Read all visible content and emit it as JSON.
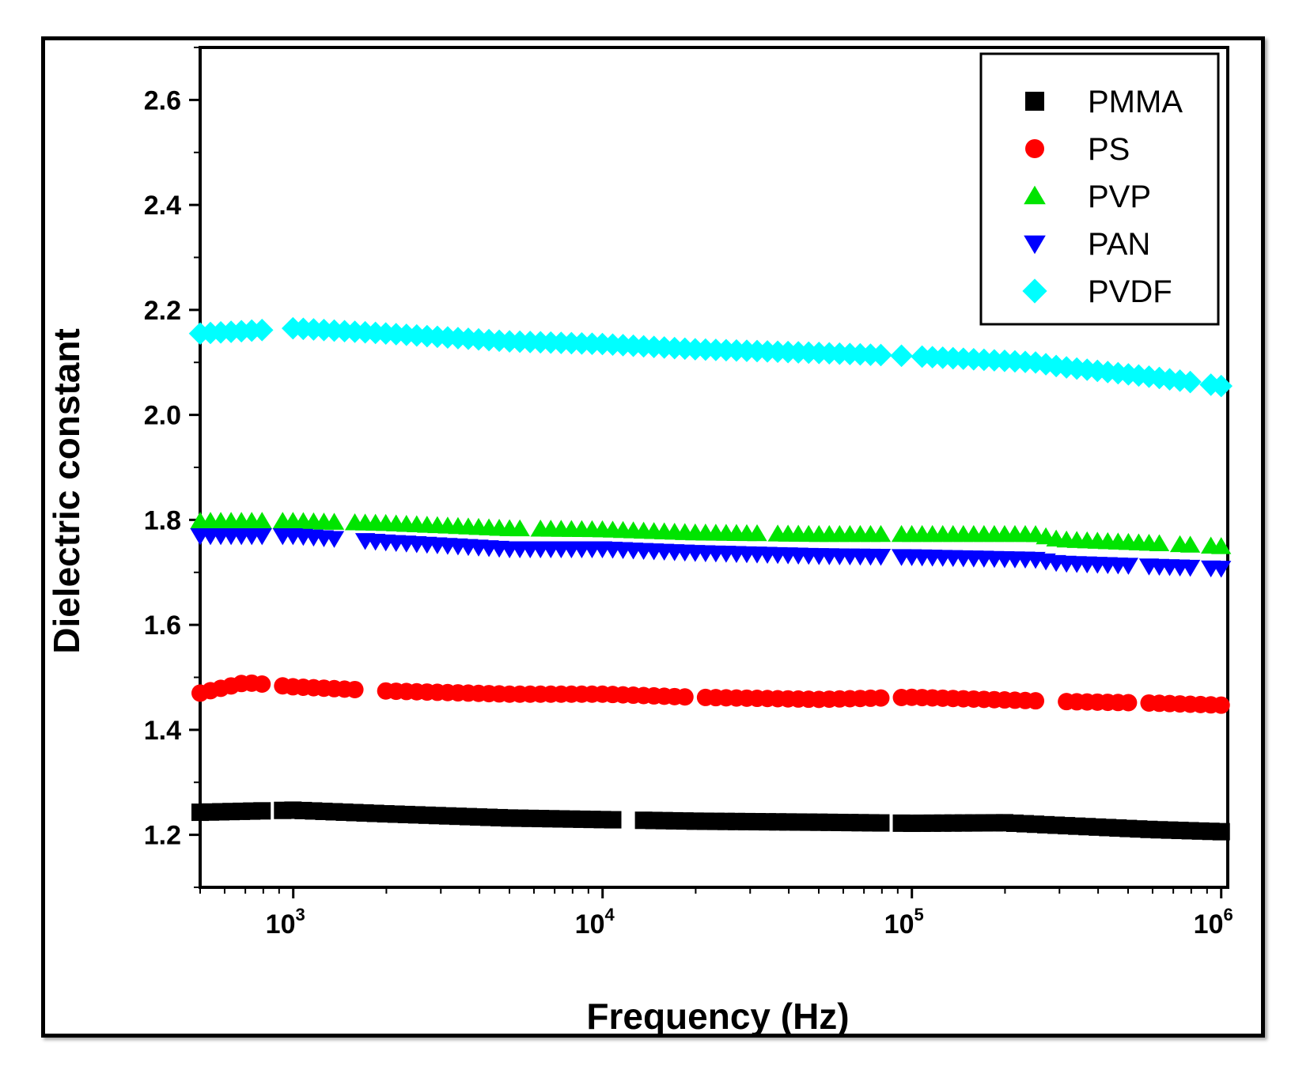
{
  "chart_data": {
    "type": "scatter",
    "xscale": "log",
    "xlabel": "Frequency (Hz)",
    "ylabel": "Dielectric constant",
    "xlim": [
      500,
      1050000
    ],
    "ylim": [
      1.1,
      2.7
    ],
    "yticks": [
      1.2,
      1.4,
      1.6,
      1.8,
      2.0,
      2.2,
      2.4,
      2.6
    ],
    "ytick_labels": [
      "1.2",
      "1.4",
      "1.6",
      "1.8",
      "2.0",
      "2.2",
      "2.4",
      "2.6"
    ],
    "xticks": [
      1000,
      10000,
      100000,
      1000000
    ],
    "xtick_labels": [
      {
        "base": "10",
        "exp": "3"
      },
      {
        "base": "10",
        "exp": "4"
      },
      {
        "base": "10",
        "exp": "5"
      },
      {
        "base": "10",
        "exp": "6"
      }
    ],
    "legend_position": "top-right",
    "series": [
      {
        "name": "PMMA",
        "marker": "square",
        "color": "#000000",
        "points": [
          [
            500,
            1.243
          ],
          [
            1000,
            1.247
          ],
          [
            2000,
            1.24
          ],
          [
            5000,
            1.232
          ],
          [
            10000,
            1.229
          ],
          [
            20000,
            1.226
          ],
          [
            50000,
            1.224
          ],
          [
            100000,
            1.222
          ],
          [
            200000,
            1.223
          ],
          [
            300000,
            1.218
          ],
          [
            600000,
            1.21
          ],
          [
            1000000,
            1.206
          ]
        ],
        "gaps": [
          [
            820,
            900
          ],
          [
            11500,
            13200
          ],
          [
            82000,
            92000
          ]
        ]
      },
      {
        "name": "PS",
        "marker": "circle",
        "color": "#ff0000",
        "points": [
          [
            500,
            1.47
          ],
          [
            700,
            1.49
          ],
          [
            1000,
            1.482
          ],
          [
            2000,
            1.474
          ],
          [
            5000,
            1.468
          ],
          [
            10000,
            1.468
          ],
          [
            20000,
            1.462
          ],
          [
            50000,
            1.458
          ],
          [
            100000,
            1.462
          ],
          [
            300000,
            1.454
          ],
          [
            600000,
            1.451
          ],
          [
            1000000,
            1.447
          ]
        ],
        "gaps": [
          [
            820,
            900
          ],
          [
            1700,
            1850
          ],
          [
            18500,
            20500
          ],
          [
            82000,
            92000
          ],
          [
            270000,
            310000
          ],
          [
            520000,
            560000
          ]
        ]
      },
      {
        "name": "PVP",
        "marker": "triangle-up",
        "color": "#00e400",
        "points": [
          [
            500,
            1.797
          ],
          [
            1000,
            1.797
          ],
          [
            2000,
            1.793
          ],
          [
            5000,
            1.783
          ],
          [
            10000,
            1.781
          ],
          [
            20000,
            1.775
          ],
          [
            50000,
            1.772
          ],
          [
            100000,
            1.772
          ],
          [
            250000,
            1.772
          ],
          [
            300000,
            1.762
          ],
          [
            600000,
            1.755
          ],
          [
            1000000,
            1.749
          ]
        ],
        "gaps": [
          [
            820,
            900
          ],
          [
            1400,
            1550
          ],
          [
            5600,
            6200
          ],
          [
            32000,
            35000
          ],
          [
            82000,
            92000
          ],
          [
            650000,
            700000
          ],
          [
            800000,
            900000
          ]
        ]
      },
      {
        "name": "PAN",
        "marker": "triangle-down",
        "color": "#0000ff",
        "points": [
          [
            500,
            1.77
          ],
          [
            1000,
            1.77
          ],
          [
            2000,
            1.758
          ],
          [
            5000,
            1.745
          ],
          [
            10000,
            1.745
          ],
          [
            20000,
            1.738
          ],
          [
            50000,
            1.732
          ],
          [
            100000,
            1.73
          ],
          [
            250000,
            1.725
          ],
          [
            300000,
            1.718
          ],
          [
            600000,
            1.712
          ],
          [
            1000000,
            1.708
          ]
        ],
        "gaps": [
          [
            820,
            900
          ],
          [
            1400,
            1650
          ],
          [
            82000,
            92000
          ],
          [
            520000,
            560000
          ],
          [
            800000,
            900000
          ]
        ]
      },
      {
        "name": "PVDF",
        "marker": "diamond",
        "color": "#00ffff",
        "points": [
          [
            500,
            2.155
          ],
          [
            1000,
            2.165
          ],
          [
            2000,
            2.155
          ],
          [
            5000,
            2.14
          ],
          [
            10000,
            2.135
          ],
          [
            20000,
            2.125
          ],
          [
            50000,
            2.118
          ],
          [
            100000,
            2.112
          ],
          [
            250000,
            2.1
          ],
          [
            300000,
            2.092
          ],
          [
            600000,
            2.072
          ],
          [
            1000000,
            2.055
          ]
        ],
        "gaps": [
          [
            820,
            950
          ],
          [
            82000,
            90000
          ],
          [
            95000,
            103000
          ],
          [
            800000,
            900000
          ]
        ]
      }
    ]
  }
}
